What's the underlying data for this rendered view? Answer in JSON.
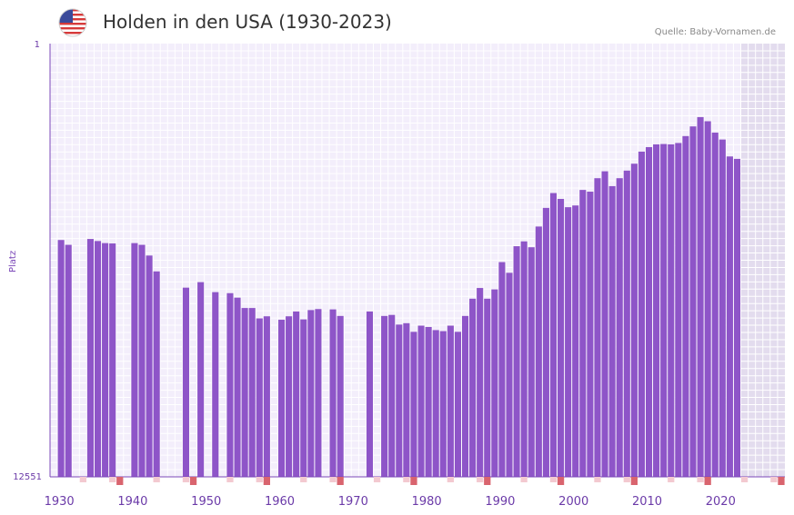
{
  "header": {
    "title": "Holden in den USA (1930-2023)",
    "source": "Quelle: Baby-Vornamen.de",
    "flag_icon": "us-flag-icon"
  },
  "colors": {
    "bar": "#8e55c8",
    "plot_bg": "#f3eefb",
    "grid": "#ffffff",
    "future_bg": "#e3dcee",
    "axis": "#7b48b8",
    "tick_label": "#6b3aa8",
    "decade_marker": "#d9646e",
    "minor_marker": "#f3c9d0"
  },
  "chart_data": {
    "type": "bar",
    "title": "Holden in den USA (1930-2023)",
    "xlabel": "",
    "ylabel": "Platz",
    "y_axis_top_label": "1",
    "y_axis_bottom_label": "12551",
    "ylim": [
      12551,
      1
    ],
    "xlim": [
      1928.5,
      2028.5
    ],
    "x_ticks": [
      1930,
      1940,
      1950,
      1960,
      1970,
      1980,
      1990,
      2000,
      2010,
      2020
    ],
    "decade_markers": [
      1928,
      1938,
      1948,
      1958,
      1968,
      1978,
      1988,
      1998,
      2008,
      2018,
      2028
    ],
    "future_shade_from": 2022.5,
    "x": [
      1930,
      1931,
      1934,
      1935,
      1936,
      1937,
      1940,
      1941,
      1942,
      1943,
      1947,
      1949,
      1951,
      1953,
      1954,
      1955,
      1956,
      1957,
      1958,
      1960,
      1961,
      1962,
      1963,
      1964,
      1965,
      1967,
      1968,
      1972,
      1974,
      1975,
      1976,
      1977,
      1978,
      1979,
      1980,
      1981,
      1982,
      1983,
      1984,
      1985,
      1986,
      1987,
      1988,
      1989,
      1990,
      1991,
      1992,
      1993,
      1994,
      1995,
      1996,
      1997,
      1998,
      1999,
      2000,
      2001,
      2002,
      2003,
      2004,
      2005,
      2006,
      2007,
      2008,
      2009,
      2010,
      2011,
      2012,
      2013,
      2014,
      2015,
      2016,
      2017,
      2018,
      2019,
      2020,
      2021,
      2022
    ],
    "values": [
      5690,
      5830,
      5660,
      5720,
      5780,
      5790,
      5780,
      5830,
      6140,
      6600,
      7070,
      6910,
      7200,
      7230,
      7360,
      7660,
      7660,
      7960,
      7900,
      8000,
      7900,
      7760,
      7990,
      7720,
      7690,
      7700,
      7890,
      7760,
      7890,
      7860,
      8140,
      8100,
      8350,
      8170,
      8210,
      8300,
      8330,
      8170,
      8350,
      7890,
      7390,
      7080,
      7390,
      7120,
      6330,
      6640,
      5870,
      5730,
      5900,
      5300,
      4760,
      4330,
      4500,
      4740,
      4690,
      4240,
      4290,
      3900,
      3700,
      4130,
      3900,
      3680,
      3480,
      3130,
      3000,
      2920,
      2910,
      2920,
      2880,
      2680,
      2400,
      2130,
      2250,
      2580,
      2780,
      3270,
      3340
    ]
  }
}
